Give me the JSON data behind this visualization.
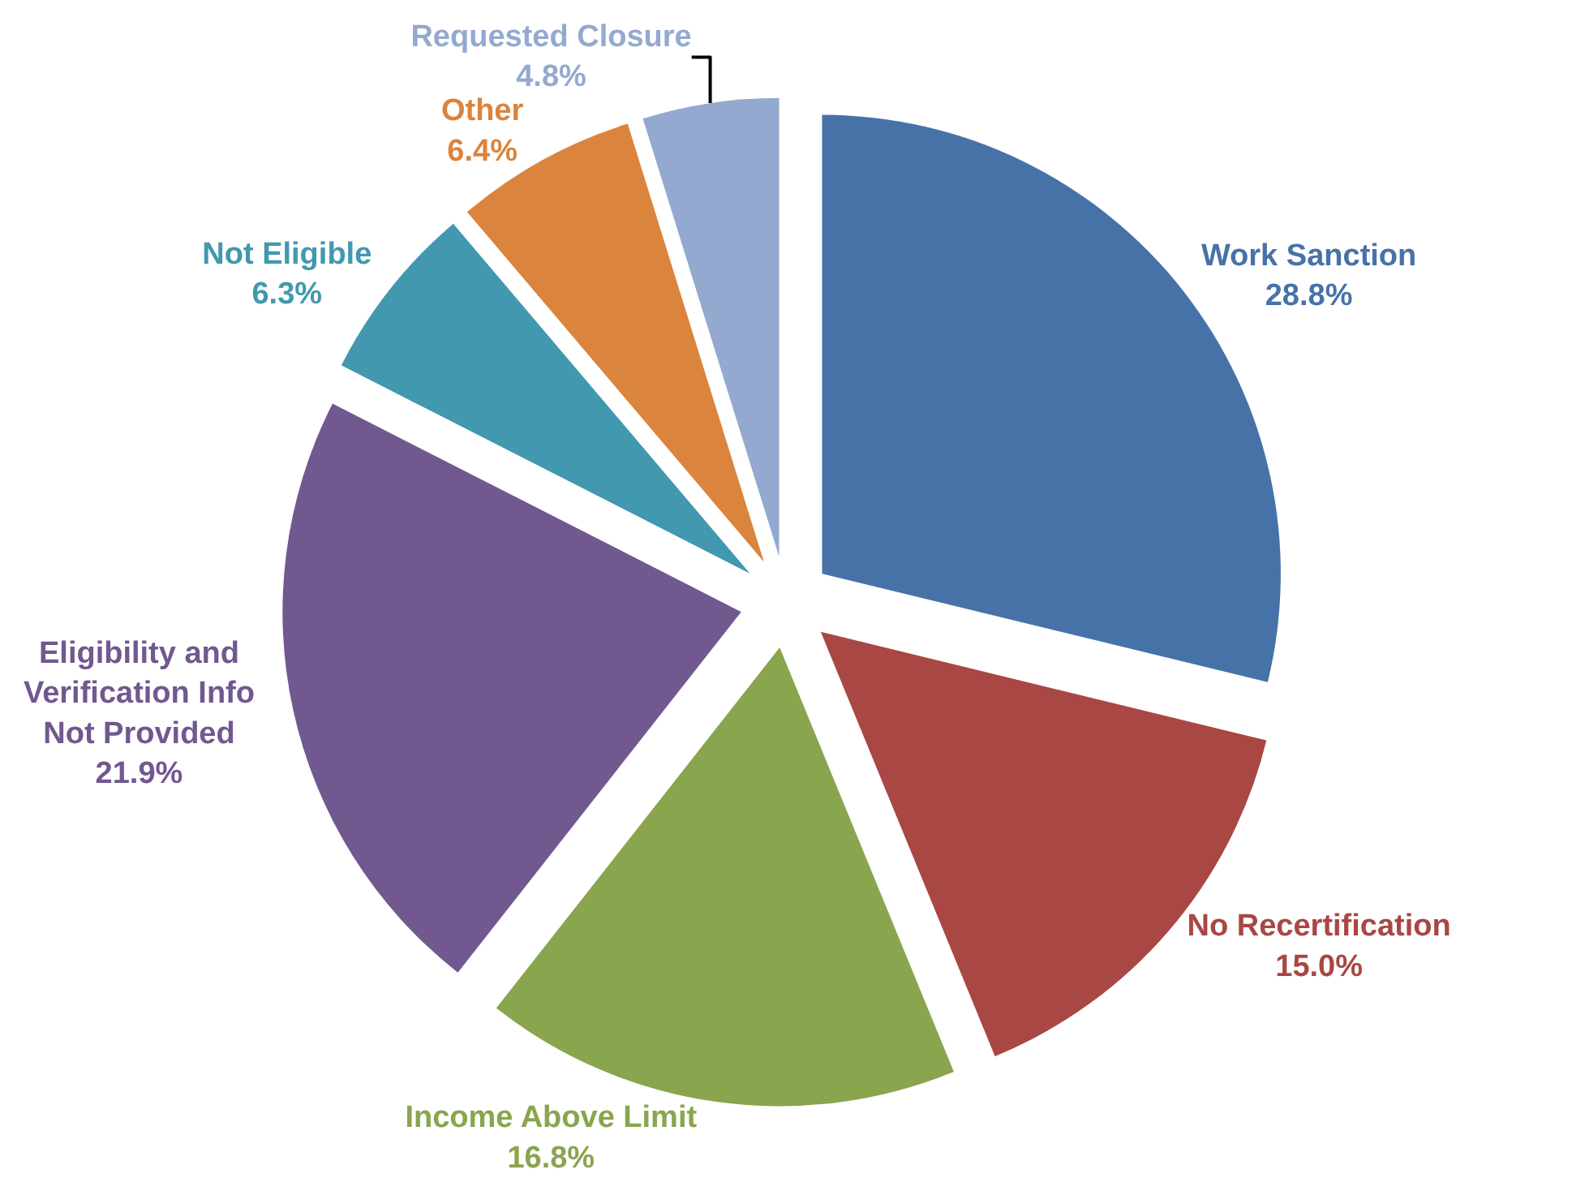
{
  "chart_data": {
    "type": "pie",
    "categories": [
      "Work Sanction",
      "No Recertification",
      "Income Above Limit",
      "Eligibility and Verification Info Not Provided",
      "Not Eligible",
      "Other",
      "Requested Closure"
    ],
    "values": [
      28.8,
      15.0,
      16.8,
      21.9,
      6.3,
      6.4,
      4.8
    ],
    "colors": [
      "#4672a8",
      "#a84744",
      "#89a54e",
      "#71588f",
      "#4198af",
      "#db843d",
      "#93a9cf"
    ],
    "value_labels": [
      "28.8%",
      "15.0%",
      "16.8%",
      "21.9%",
      "6.3%",
      "6.4%",
      "4.8%"
    ],
    "legend": false
  }
}
